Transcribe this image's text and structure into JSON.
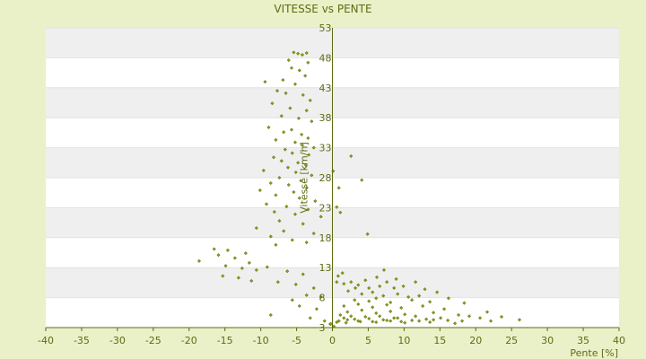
{
  "chart_data": {
    "type": "scatter",
    "title": "VITESSE vs PENTE",
    "xlabel": "Pente [%]",
    "ylabel": "Vitesse [km/h]",
    "xlim": [
      -40,
      40
    ],
    "ylim": [
      3,
      53
    ],
    "xticks": [
      -40,
      -35,
      -30,
      -25,
      -20,
      -15,
      -10,
      -5,
      0,
      5,
      10,
      15,
      20,
      25,
      30,
      35,
      40
    ],
    "yticks": [
      3,
      8,
      13,
      18,
      23,
      28,
      33,
      38,
      43,
      48,
      53
    ],
    "grid": true,
    "legend": "none",
    "colors": {
      "background": "#eaf0c8",
      "plot_band_light": "#ffffff",
      "plot_band_dark": "#efefef",
      "axis": "#5f6b12",
      "marker": "#8a9a12",
      "text": "#5f6b12"
    },
    "series": [
      {
        "points": [
          [
            -5.4,
            48.9
          ],
          [
            -4.8,
            48.7
          ],
          [
            -4.2,
            48.5
          ],
          [
            -3.6,
            48.8
          ],
          [
            -6.1,
            47.6
          ],
          [
            -3.4,
            47.2
          ],
          [
            -5.7,
            46.3
          ],
          [
            -4.6,
            45.9
          ],
          [
            -3.8,
            45.0
          ],
          [
            -6.9,
            44.3
          ],
          [
            -9.4,
            44.0
          ],
          [
            -5.2,
            43.6
          ],
          [
            -7.7,
            42.5
          ],
          [
            -6.5,
            42.1
          ],
          [
            -4.1,
            41.8
          ],
          [
            -8.4,
            40.4
          ],
          [
            -3.1,
            40.9
          ],
          [
            -5.9,
            39.6
          ],
          [
            -3.6,
            39.2
          ],
          [
            -7.1,
            38.3
          ],
          [
            -4.7,
            37.9
          ],
          [
            -2.9,
            37.4
          ],
          [
            -8.9,
            36.4
          ],
          [
            -5.7,
            36.0
          ],
          [
            -6.8,
            35.6
          ],
          [
            -4.3,
            35.2
          ],
          [
            -3.4,
            34.6
          ],
          [
            -7.9,
            34.3
          ],
          [
            -5.2,
            33.9
          ],
          [
            -4.2,
            33.4
          ],
          [
            -2.6,
            33.0
          ],
          [
            -6.6,
            32.7
          ],
          [
            -5.6,
            32.1
          ],
          [
            -3.3,
            31.8
          ],
          [
            -8.2,
            31.4
          ],
          [
            -7.1,
            30.8
          ],
          [
            -4.8,
            30.5
          ],
          [
            -3.7,
            30.1
          ],
          [
            -6.2,
            29.7
          ],
          [
            -9.6,
            29.2
          ],
          [
            -5.1,
            28.9
          ],
          [
            -2.9,
            28.4
          ],
          [
            -7.4,
            28.0
          ],
          [
            -4.4,
            27.5
          ],
          [
            -8.6,
            27.1
          ],
          [
            -6.1,
            26.8
          ],
          [
            -3.6,
            26.3
          ],
          [
            -10.1,
            25.9
          ],
          [
            -5.4,
            25.6
          ],
          [
            -7.9,
            25.1
          ],
          [
            -4.6,
            24.6
          ],
          [
            -2.4,
            24.1
          ],
          [
            -9.2,
            23.6
          ],
          [
            -6.4,
            23.2
          ],
          [
            -3.4,
            22.7
          ],
          [
            -8.1,
            22.3
          ],
          [
            -5.2,
            21.9
          ],
          [
            -1.6,
            21.5
          ],
          [
            -7.4,
            20.8
          ],
          [
            -4.1,
            20.3
          ],
          [
            -10.6,
            19.6
          ],
          [
            -6.8,
            19.1
          ],
          [
            -2.6,
            18.7
          ],
          [
            -8.6,
            18.2
          ],
          [
            -5.6,
            17.6
          ],
          [
            -3.6,
            17.2
          ],
          [
            -7.9,
            16.8
          ],
          [
            -16.5,
            16.1
          ],
          [
            -14.6,
            15.9
          ],
          [
            -12.1,
            15.4
          ],
          [
            -15.9,
            15.1
          ],
          [
            -13.6,
            14.6
          ],
          [
            -18.6,
            14.1
          ],
          [
            -11.6,
            13.8
          ],
          [
            -14.9,
            13.3
          ],
          [
            -12.6,
            12.9
          ],
          [
            -10.6,
            12.6
          ],
          [
            -9.1,
            13.1
          ],
          [
            -6.3,
            12.4
          ],
          [
            -4.1,
            11.9
          ],
          [
            -15.3,
            11.6
          ],
          [
            -13.1,
            11.3
          ],
          [
            -11.3,
            10.8
          ],
          [
            -7.6,
            10.6
          ],
          [
            -5.1,
            10.2
          ],
          [
            -2.6,
            9.6
          ],
          [
            -3.6,
            8.4
          ],
          [
            -1.6,
            8.1
          ],
          [
            -5.6,
            7.6
          ],
          [
            -4.6,
            6.6
          ],
          [
            -2.2,
            6.1
          ],
          [
            -8.6,
            5.1
          ],
          [
            -3.1,
            4.6
          ],
          [
            -1.1,
            4.1
          ],
          [
            -0.3,
            3.6
          ],
          [
            0.2,
            3.2
          ],
          [
            -0.2,
            3.6
          ],
          [
            2.6,
            31.6
          ],
          [
            4.1,
            27.6
          ],
          [
            0.9,
            26.3
          ],
          [
            0.6,
            23.1
          ],
          [
            4.9,
            18.6
          ],
          [
            0.1,
            29.1
          ],
          [
            1.1,
            22.2
          ],
          [
            0.6,
            10.6
          ],
          [
            1.6,
            10.3
          ],
          [
            2.6,
            10.6
          ],
          [
            3.6,
            10.1
          ],
          [
            5.1,
            9.6
          ],
          [
            6.6,
            9.9
          ],
          [
            7.6,
            10.6
          ],
          [
            8.6,
            9.6
          ],
          [
            4.1,
            8.6
          ],
          [
            5.6,
            8.9
          ],
          [
            7.1,
            8.3
          ],
          [
            9.1,
            8.6
          ],
          [
            10.6,
            8.1
          ],
          [
            12.1,
            8.3
          ],
          [
            3.1,
            7.6
          ],
          [
            5.1,
            7.4
          ],
          [
            6.1,
            7.9
          ],
          [
            8.1,
            7.2
          ],
          [
            11.1,
            7.6
          ],
          [
            13.6,
            7.3
          ],
          [
            1.6,
            6.6
          ],
          [
            3.6,
            6.9
          ],
          [
            5.6,
            6.4
          ],
          [
            7.6,
            6.8
          ],
          [
            9.6,
            6.3
          ],
          [
            12.6,
            6.6
          ],
          [
            15.6,
            6.1
          ],
          [
            2.1,
            5.6
          ],
          [
            4.1,
            5.9
          ],
          [
            6.1,
            5.4
          ],
          [
            8.1,
            5.7
          ],
          [
            10.1,
            5.2
          ],
          [
            14.1,
            5.5
          ],
          [
            17.6,
            5.1
          ],
          [
            1.1,
            5.1
          ],
          [
            2.6,
            4.9
          ],
          [
            4.6,
            4.8
          ],
          [
            6.6,
            4.9
          ],
          [
            8.6,
            4.6
          ],
          [
            11.6,
            4.9
          ],
          [
            15.1,
            4.6
          ],
          [
            19.1,
            4.9
          ],
          [
            1.6,
            4.6
          ],
          [
            3.1,
            4.4
          ],
          [
            5.1,
            4.5
          ],
          [
            7.1,
            4.3
          ],
          [
            9.1,
            4.6
          ],
          [
            13.1,
            4.4
          ],
          [
            16.1,
            4.2
          ],
          [
            21.6,
            5.6
          ],
          [
            23.6,
            4.8
          ],
          [
            26.1,
            4.3
          ],
          [
            0.9,
            4.1
          ],
          [
            2.1,
            4.3
          ],
          [
            3.6,
            4.1
          ],
          [
            5.6,
            4.0
          ],
          [
            7.6,
            4.2
          ],
          [
            9.6,
            4.0
          ],
          [
            12.1,
            4.1
          ],
          [
            14.1,
            4.3
          ],
          [
            18.1,
            4.1
          ],
          [
            20.6,
            4.6
          ],
          [
            0.6,
            3.9
          ],
          [
            1.9,
            3.8
          ],
          [
            3.9,
            4.0
          ],
          [
            6.1,
            3.9
          ],
          [
            8.1,
            4.1
          ],
          [
            10.1,
            3.8
          ],
          [
            11.1,
            4.2
          ],
          [
            13.6,
            3.9
          ],
          [
            17.1,
            3.7
          ],
          [
            22.1,
            4.1
          ],
          [
            0.8,
            11.6
          ],
          [
            1.4,
            12.1
          ],
          [
            2.2,
            9.1
          ],
          [
            3.2,
            9.6
          ],
          [
            4.6,
            10.9
          ],
          [
            6.2,
            11.4
          ],
          [
            7.2,
            12.6
          ],
          [
            8.9,
            11.1
          ],
          [
            9.9,
            9.9
          ],
          [
            11.6,
            10.6
          ],
          [
            12.9,
            9.4
          ],
          [
            14.6,
            8.9
          ],
          [
            16.2,
            7.9
          ],
          [
            18.4,
            7.1
          ]
        ]
      }
    ]
  }
}
